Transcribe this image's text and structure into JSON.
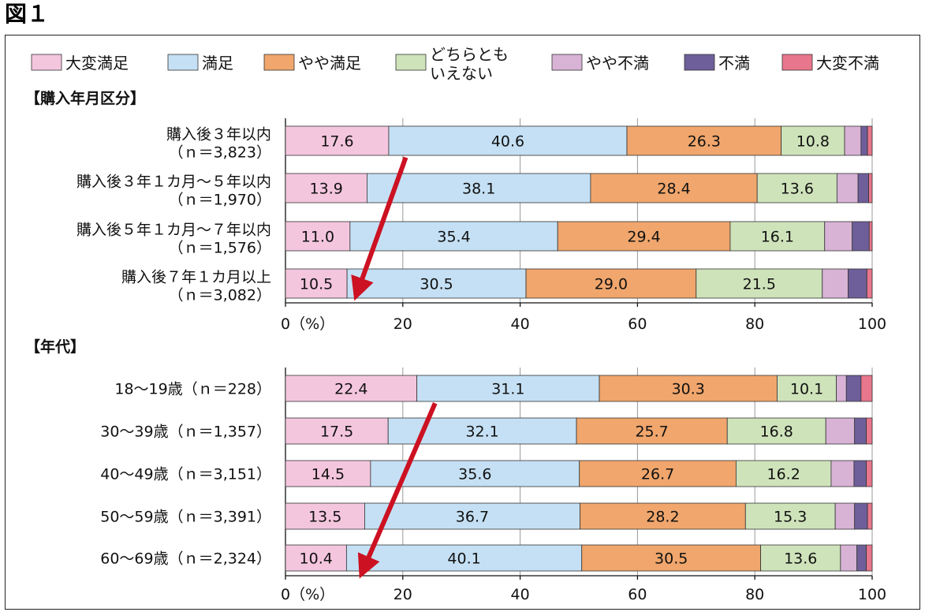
{
  "figure_title": "図１",
  "colors": {
    "大変満足": "#f4c6de",
    "満足": "#c5e0f4",
    "やや満足": "#f0a66c",
    "どちらともいえない": "#cfe3bb",
    "やや不満": "#d8b3d6",
    "不満": "#6e5f9a",
    "大変不満": "#e8768c",
    "arrow": "#cc1122"
  },
  "chart_data": [
    {
      "type": "bar",
      "orientation": "horizontal",
      "stacked": true,
      "section_label": "【購入年月区分】",
      "legend": {
        "position": "top",
        "entries": [
          "大変満足",
          "満足",
          "やや満足",
          "どちらともいえない",
          "やや不満",
          "不満",
          "大変不満"
        ],
        "entry_lines": [
          [
            "大変満足"
          ],
          [
            "満足"
          ],
          [
            "やや満足"
          ],
          [
            "どちらとも",
            "いえない"
          ],
          [
            "やや不満"
          ],
          [
            "不満"
          ],
          [
            "大変不満"
          ]
        ]
      },
      "categories": [
        [
          "購入後３年以内",
          "（ｎ＝3,823）"
        ],
        [
          "購入後３年１カ月～５年以内",
          "（ｎ＝1,970）"
        ],
        [
          "購入後５年１カ月～７年以内",
          "（ｎ＝1,576）"
        ],
        [
          "購入後７年１カ月以上",
          "（ｎ＝3,082）"
        ]
      ],
      "series": [
        {
          "name": "大変満足",
          "values": [
            17.6,
            13.9,
            11.0,
            10.5
          ]
        },
        {
          "name": "満足",
          "values": [
            40.6,
            38.1,
            35.4,
            30.5
          ]
        },
        {
          "name": "やや満足",
          "values": [
            26.3,
            28.4,
            29.4,
            29.0
          ]
        },
        {
          "name": "どちらともいえない",
          "values": [
            10.8,
            13.6,
            16.1,
            21.5
          ]
        },
        {
          "name": "やや不満",
          "values": [
            2.8,
            3.6,
            4.7,
            4.4
          ]
        },
        {
          "name": "不満",
          "values": [
            1.1,
            1.8,
            2.9,
            3.2
          ]
        },
        {
          "name": "大変不満",
          "values": [
            0.8,
            0.6,
            0.5,
            0.9
          ]
        }
      ],
      "data_labels": [
        [
          "17.6",
          "13.9",
          "11.0",
          "10.5"
        ],
        [
          "40.6",
          "38.1",
          "35.4",
          "30.5"
        ],
        [
          "26.3",
          "28.4",
          "29.4",
          "29.0"
        ],
        [
          "10.8",
          "13.6",
          "16.1",
          "21.5"
        ]
      ],
      "xlim": [
        0,
        100
      ],
      "xticks": [
        0,
        20,
        40,
        60,
        80,
        100
      ],
      "xtick_labels": [
        "0（%）",
        "20",
        "40",
        "60",
        "80",
        "100"
      ],
      "arrow": {
        "from": [
          20.5,
          0.35
        ],
        "to": [
          12.5,
          3.1
        ]
      }
    },
    {
      "type": "bar",
      "orientation": "horizontal",
      "stacked": true,
      "section_label": "【年代】",
      "categories": [
        [
          "18～19歳（ｎ＝228）"
        ],
        [
          "30～39歳（ｎ＝1,357）"
        ],
        [
          "40～49歳（ｎ＝3,151）"
        ],
        [
          "50～59歳（ｎ＝3,391）"
        ],
        [
          "60～69歳（ｎ＝2,324）"
        ]
      ],
      "series": [
        {
          "name": "大変満足",
          "values": [
            22.4,
            17.5,
            14.5,
            13.5,
            10.4
          ]
        },
        {
          "name": "満足",
          "values": [
            31.1,
            32.1,
            35.6,
            36.7,
            40.1
          ]
        },
        {
          "name": "やや満足",
          "values": [
            30.3,
            25.7,
            26.7,
            28.2,
            30.5
          ]
        },
        {
          "name": "どちらともいえない",
          "values": [
            10.1,
            16.8,
            16.2,
            15.3,
            13.6
          ]
        },
        {
          "name": "やや不満",
          "values": [
            1.7,
            4.9,
            3.9,
            3.3,
            2.8
          ]
        },
        {
          "name": "不満",
          "values": [
            2.5,
            2.0,
            2.1,
            2.2,
            1.6
          ]
        },
        {
          "name": "大変不満",
          "values": [
            1.9,
            1.0,
            1.0,
            0.8,
            1.0
          ]
        }
      ],
      "data_labels": [
        [
          "22.4",
          "17.5",
          "14.5",
          "13.5",
          "10.4"
        ],
        [
          "31.1",
          "32.1",
          "35.6",
          "36.7",
          "40.1"
        ],
        [
          "30.3",
          "25.7",
          "26.7",
          "28.2",
          "30.5"
        ],
        [
          "10.1",
          "16.8",
          "16.2",
          "15.3",
          "13.6"
        ]
      ],
      "xlim": [
        0,
        100
      ],
      "xticks": [
        0,
        20,
        40,
        60,
        80,
        100
      ],
      "xtick_labels": [
        "0（%）",
        "20",
        "40",
        "60",
        "80",
        "100"
      ],
      "arrow": {
        "from": [
          25.5,
          0.35
        ],
        "to": [
          13.5,
          4.2
        ]
      }
    }
  ]
}
